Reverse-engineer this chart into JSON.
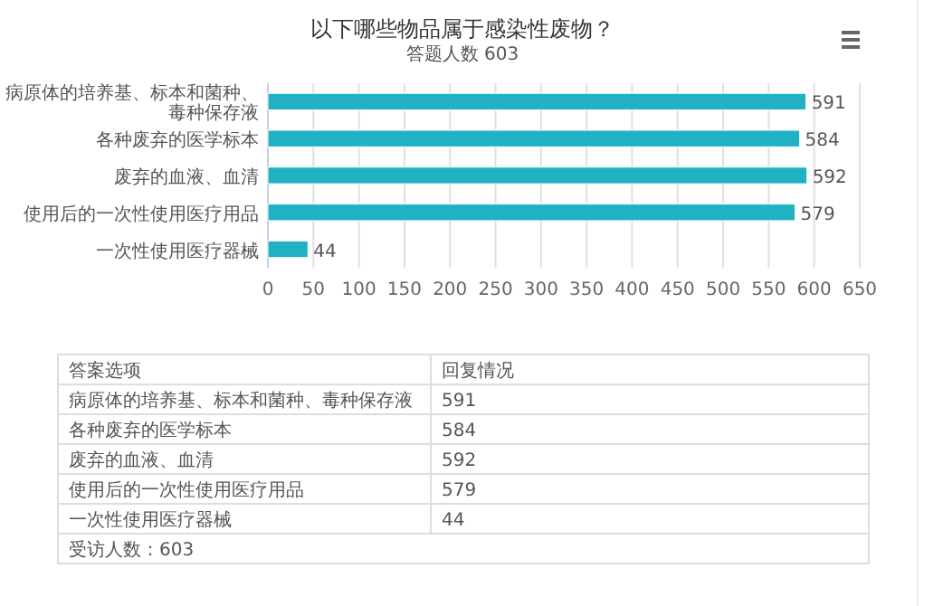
{
  "chart_data": {
    "type": "bar",
    "orientation": "horizontal",
    "title": "以下哪些物品属于感染性废物？",
    "subtitle": "答题人数 603",
    "categories": [
      "病原体的培养基、标本和菌种、毒种保存液",
      "各种废弃的医学标本",
      "废弃的血液、血清",
      "使用后的一次性使用医疗用品",
      "一次性使用医疗器械"
    ],
    "values": [
      591,
      584,
      592,
      579,
      44
    ],
    "color": "#20b2c2",
    "xlim": [
      0,
      650
    ],
    "xticks": [
      0,
      50,
      100,
      150,
      200,
      250,
      300,
      350,
      400,
      450,
      500,
      550,
      600,
      650
    ],
    "grid": "x",
    "data_labels": true,
    "annotations": [
      "答案选项",
      "回复情况",
      "受访人数：603",
      "591",
      "584",
      "592",
      "579",
      "44"
    ]
  }
}
